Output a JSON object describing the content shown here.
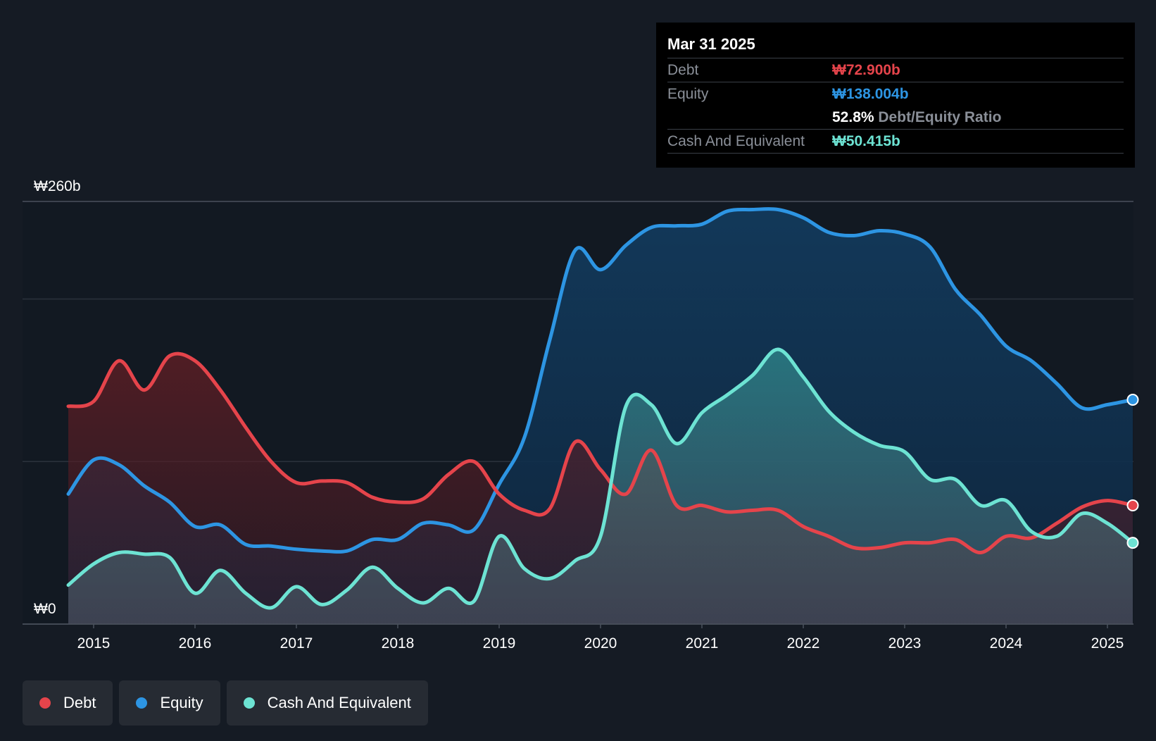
{
  "tooltip": {
    "date": "Mar 31 2025",
    "debt_label": "Debt",
    "debt_value": "₩72.900b",
    "equity_label": "Equity",
    "equity_value": "₩138.004b",
    "ratio_value": "52.8%",
    "ratio_label": "Debt/Equity Ratio",
    "cash_label": "Cash And Equivalent",
    "cash_value": "₩50.415b"
  },
  "legend": [
    {
      "label": "Debt",
      "color": "#e5444b"
    },
    {
      "label": "Equity",
      "color": "#2d95e3"
    },
    {
      "label": "Cash And Equivalent",
      "color": "#6de3d3"
    }
  ],
  "chart_data": {
    "type": "area",
    "ylim": [
      0,
      260
    ],
    "y_tick_labels": [
      {
        "value": 260,
        "label": "₩260b"
      },
      {
        "value": 0,
        "label": "₩0"
      }
    ],
    "gridlines": [
      260,
      200,
      100,
      0
    ],
    "x_ticks": [
      2015,
      2016,
      2017,
      2018,
      2019,
      2020,
      2021,
      2022,
      2023,
      2024,
      2025
    ],
    "xlim": [
      2014.7,
      2025.25
    ],
    "series": [
      {
        "name": "Debt",
        "color": "#e5444b",
        "points": [
          [
            2014.75,
            134
          ],
          [
            2015.0,
            137
          ],
          [
            2015.25,
            162
          ],
          [
            2015.5,
            144
          ],
          [
            2015.75,
            165
          ],
          [
            2016.0,
            162
          ],
          [
            2016.25,
            144
          ],
          [
            2016.5,
            121
          ],
          [
            2016.75,
            100
          ],
          [
            2017.0,
            87
          ],
          [
            2017.25,
            88
          ],
          [
            2017.5,
            87
          ],
          [
            2017.75,
            78
          ],
          [
            2018.0,
            75
          ],
          [
            2018.25,
            77
          ],
          [
            2018.5,
            92
          ],
          [
            2018.75,
            100
          ],
          [
            2019.0,
            80
          ],
          [
            2019.25,
            70
          ],
          [
            2019.5,
            71
          ],
          [
            2019.75,
            112
          ],
          [
            2020.0,
            95
          ],
          [
            2020.25,
            80
          ],
          [
            2020.5,
            107
          ],
          [
            2020.75,
            73
          ],
          [
            2021.0,
            73
          ],
          [
            2021.25,
            69
          ],
          [
            2021.5,
            70
          ],
          [
            2021.75,
            70
          ],
          [
            2022.0,
            60
          ],
          [
            2022.25,
            54
          ],
          [
            2022.5,
            47
          ],
          [
            2022.75,
            47
          ],
          [
            2023.0,
            50
          ],
          [
            2023.25,
            50
          ],
          [
            2023.5,
            52
          ],
          [
            2023.75,
            44
          ],
          [
            2024.0,
            54
          ],
          [
            2024.25,
            53
          ],
          [
            2024.5,
            62
          ],
          [
            2024.75,
            72
          ],
          [
            2025.0,
            76
          ],
          [
            2025.25,
            73
          ]
        ]
      },
      {
        "name": "Equity",
        "color": "#2d95e3",
        "points": [
          [
            2014.75,
            80
          ],
          [
            2015.0,
            101
          ],
          [
            2015.25,
            98
          ],
          [
            2015.5,
            85
          ],
          [
            2015.75,
            75
          ],
          [
            2016.0,
            60
          ],
          [
            2016.25,
            61
          ],
          [
            2016.5,
            49
          ],
          [
            2016.75,
            48
          ],
          [
            2017.0,
            46
          ],
          [
            2017.25,
            45
          ],
          [
            2017.5,
            45
          ],
          [
            2017.75,
            52
          ],
          [
            2018.0,
            52
          ],
          [
            2018.25,
            62
          ],
          [
            2018.5,
            61
          ],
          [
            2018.75,
            58
          ],
          [
            2019.0,
            86
          ],
          [
            2019.25,
            115
          ],
          [
            2019.5,
            175
          ],
          [
            2019.75,
            230
          ],
          [
            2020.0,
            218
          ],
          [
            2020.25,
            233
          ],
          [
            2020.5,
            244
          ],
          [
            2020.75,
            245
          ],
          [
            2021.0,
            246
          ],
          [
            2021.25,
            254
          ],
          [
            2021.5,
            255
          ],
          [
            2021.75,
            255
          ],
          [
            2022.0,
            250
          ],
          [
            2022.25,
            241
          ],
          [
            2022.5,
            239
          ],
          [
            2022.75,
            242
          ],
          [
            2023.0,
            240
          ],
          [
            2023.25,
            232
          ],
          [
            2023.5,
            206
          ],
          [
            2023.75,
            190
          ],
          [
            2024.0,
            171
          ],
          [
            2024.25,
            162
          ],
          [
            2024.5,
            148
          ],
          [
            2024.75,
            133
          ],
          [
            2025.0,
            135
          ],
          [
            2025.25,
            138
          ]
        ]
      },
      {
        "name": "Cash And Equivalent",
        "color": "#6de3d3",
        "points": [
          [
            2014.75,
            24
          ],
          [
            2015.0,
            37
          ],
          [
            2015.25,
            44
          ],
          [
            2015.5,
            43
          ],
          [
            2015.75,
            41
          ],
          [
            2016.0,
            19
          ],
          [
            2016.25,
            33
          ],
          [
            2016.5,
            19
          ],
          [
            2016.75,
            10
          ],
          [
            2017.0,
            23
          ],
          [
            2017.25,
            12
          ],
          [
            2017.5,
            21
          ],
          [
            2017.75,
            35
          ],
          [
            2018.0,
            22
          ],
          [
            2018.25,
            13
          ],
          [
            2018.5,
            22
          ],
          [
            2018.75,
            14
          ],
          [
            2019.0,
            54
          ],
          [
            2019.25,
            34
          ],
          [
            2019.5,
            28
          ],
          [
            2019.75,
            39
          ],
          [
            2020.0,
            54
          ],
          [
            2020.25,
            134
          ],
          [
            2020.5,
            135
          ],
          [
            2020.75,
            111
          ],
          [
            2021.0,
            130
          ],
          [
            2021.25,
            141
          ],
          [
            2021.5,
            153
          ],
          [
            2021.75,
            169
          ],
          [
            2022.0,
            152
          ],
          [
            2022.25,
            131
          ],
          [
            2022.5,
            118
          ],
          [
            2022.75,
            110
          ],
          [
            2023.0,
            106
          ],
          [
            2023.25,
            89
          ],
          [
            2023.5,
            89
          ],
          [
            2023.75,
            73
          ],
          [
            2024.0,
            76
          ],
          [
            2024.25,
            57
          ],
          [
            2024.5,
            54
          ],
          [
            2024.75,
            68
          ],
          [
            2025.0,
            62
          ],
          [
            2025.25,
            50
          ]
        ]
      }
    ]
  }
}
